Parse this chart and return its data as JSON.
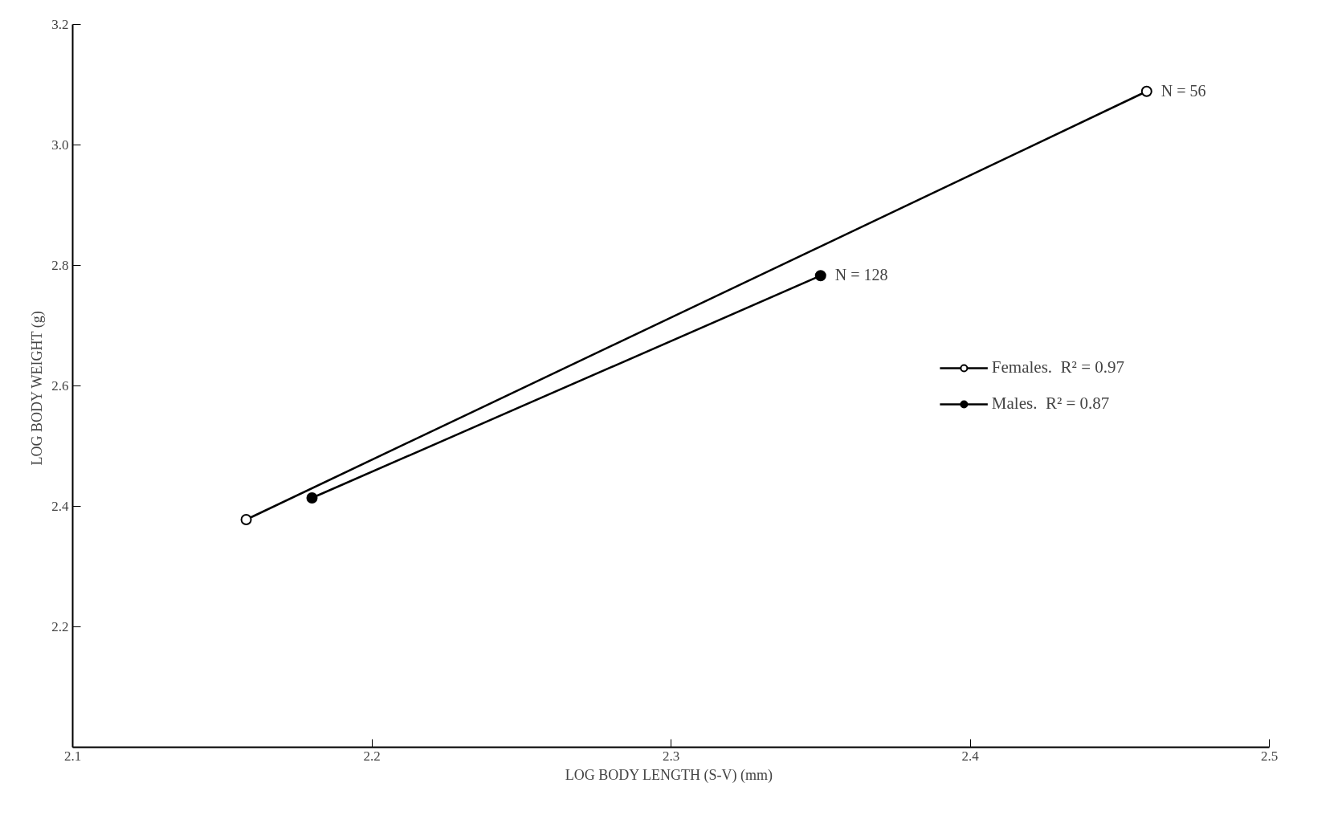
{
  "chart_data": {
    "type": "line",
    "xlabel": "LOG BODY LENGTH (S-V)  (mm)",
    "ylabel": "LOG BODY WEIGHT  (g)",
    "series": [
      {
        "name": "Females.  R² = 0.97",
        "color": "#000000",
        "marker": "circle_open",
        "x": [
          2.158,
          2.459
        ],
        "values": [
          2.378,
          3.089
        ]
      },
      {
        "name": "Males.  R² = 0.87",
        "color": "#000000",
        "marker": "circle",
        "x": [
          2.18,
          2.35
        ],
        "values": [
          2.414,
          2.783
        ]
      }
    ],
    "annotations": [
      {
        "text": "N = 56",
        "x": 2.459,
        "y": 3.089
      },
      {
        "text": "N = 128",
        "x": 2.35,
        "y": 2.783
      }
    ],
    "xlim": [
      2.1,
      2.5
    ],
    "ylim": [
      2.0,
      3.2
    ],
    "xticks": [
      2.1,
      2.2,
      2.3,
      2.4,
      2.5
    ],
    "yticks": [
      2.2,
      2.4,
      2.6,
      2.8,
      {
        "value": 3.0,
        "label": "3.0"
      },
      3.2
    ],
    "grid": false,
    "legend": "right"
  }
}
